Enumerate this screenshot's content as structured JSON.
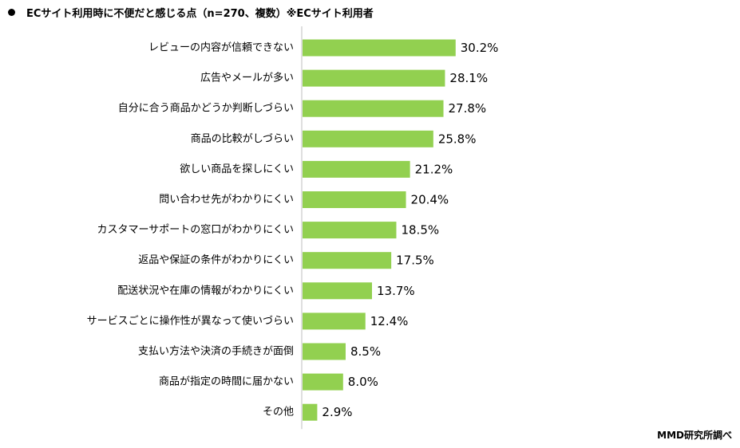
{
  "header": {
    "title": "ECサイト利用時に不便だと感じる点（n=270、複数）※ECサイト利用者"
  },
  "source": "MMD研究所調べ",
  "colors": {
    "bar": "#92D050",
    "axis": "#BFBFBF"
  },
  "chart_data": {
    "type": "bar",
    "orientation": "horizontal",
    "unit": "%",
    "xlim": [
      0,
      100
    ],
    "categories": [
      "レビューの内容が信頼できない",
      "広告やメールが多い",
      "自分に合う商品かどうか判断しづらい",
      "商品の比較がしづらい",
      "欲しい商品を探しにくい",
      "問い合わせ先がわかりにくい",
      "カスタマーサポートの窓口がわかりにくい",
      "返品や保証の条件がわかりにくい",
      "配送状況や在庫の情報がわかりにくい",
      "サービスごとに操作性が異なって使いづらい",
      "支払い方法や決済の手続きが面倒",
      "商品が指定の時間に届かない",
      "その他"
    ],
    "values": [
      30.2,
      28.1,
      27.8,
      25.8,
      21.2,
      20.4,
      18.5,
      17.5,
      13.7,
      12.4,
      8.5,
      8.0,
      2.9
    ],
    "data_labels": [
      "30.2%",
      "28.1%",
      "27.8%",
      "25.8%",
      "21.2%",
      "20.4%",
      "18.5%",
      "17.5%",
      "13.7%",
      "12.4%",
      "8.5%",
      "8.0%",
      "2.9%"
    ]
  }
}
